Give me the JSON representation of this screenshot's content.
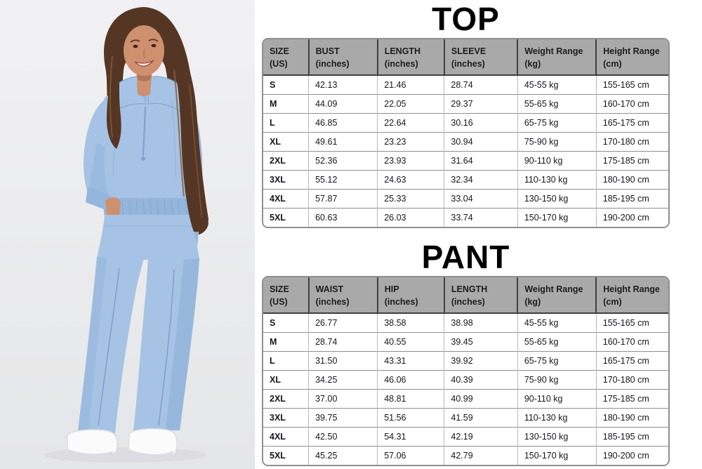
{
  "photo": {
    "description": "Model wearing a light blue half-zip sweatshirt and matching wide-leg sweatpants with white sneakers",
    "colors": {
      "background_top": "#f1f1f3",
      "background_bottom": "#e5e6e9",
      "garment": "#a6c3e5",
      "garment_mid": "#94b6dd",
      "garment_shadow": "#84a8d2",
      "garment_line": "#7e9fc9",
      "hair": "#553625",
      "hair_light": "#8a5f3c",
      "skin": "#cf906f",
      "skin_shadow": "#b3755a",
      "shoe": "#fbfbfc",
      "shoe_shadow": "#dcdce2",
      "floor_shadow": "#d9d9de"
    }
  },
  "theme": {
    "title_color": "#000000",
    "header_bg": "#a9a9a9",
    "header_text": "#1c1c1c",
    "body_text": "#15151e",
    "border_dark": "#404040",
    "border_mid": "#8f8f8f",
    "border_light": "#b9b9b9"
  },
  "sections": [
    {
      "title": "TOP",
      "table": {
        "headers": [
          [
            "SIZE",
            "(US)"
          ],
          [
            "BUST",
            "(inches)"
          ],
          [
            "LENGTH",
            "(inches)"
          ],
          [
            "SLEEVE",
            "(inches)"
          ],
          [
            "Weight Range",
            "(kg)"
          ],
          [
            "Height Range",
            "(cm)"
          ]
        ],
        "rows": [
          [
            "S",
            "42.13",
            "21.46",
            "28.74",
            "45-55 kg",
            "155-165 cm"
          ],
          [
            "M",
            "44.09",
            "22.05",
            "29.37",
            "55-65 kg",
            "160-170 cm"
          ],
          [
            "L",
            "46.85",
            "22.64",
            "30.16",
            "65-75 kg",
            "165-175 cm"
          ],
          [
            "XL",
            "49.61",
            "23.23",
            "30.94",
            "75-90 kg",
            "170-180 cm"
          ],
          [
            "2XL",
            "52.36",
            "23.93",
            "31.64",
            "90-110 kg",
            "175-185 cm"
          ],
          [
            "3XL",
            "55.12",
            "24.63",
            "32.34",
            "110-130 kg",
            "180-190 cm"
          ],
          [
            "4XL",
            "57.87",
            "25.33",
            "33.04",
            "130-150 kg",
            "185-195 cm"
          ],
          [
            "5XL",
            "60.63",
            "26.03",
            "33.74",
            "150-170 kg",
            "190-200 cm"
          ]
        ]
      }
    },
    {
      "title": "PANT",
      "table": {
        "headers": [
          [
            "SIZE",
            "(US)"
          ],
          [
            "WAIST",
            "(inches)"
          ],
          [
            "HIP",
            "(inches)"
          ],
          [
            "LENGTH",
            "(inches)"
          ],
          [
            "Weight Range",
            "(kg)"
          ],
          [
            "Height Range",
            "(cm)"
          ]
        ],
        "rows": [
          [
            "S",
            "26.77",
            "38.58",
            "38.98",
            "45-55 kg",
            "155-165 cm"
          ],
          [
            "M",
            "28.74",
            "40.55",
            "39.45",
            "55-65 kg",
            "160-170 cm"
          ],
          [
            "L",
            "31.50",
            "43.31",
            "39.92",
            "65-75 kg",
            "165-175 cm"
          ],
          [
            "XL",
            "34.25",
            "46.06",
            "40.39",
            "75-90 kg",
            "170-180 cm"
          ],
          [
            "2XL",
            "37.00",
            "48.81",
            "40.99",
            "90-110 kg",
            "175-185 cm"
          ],
          [
            "3XL",
            "39.75",
            "51.56",
            "41.59",
            "110-130 kg",
            "180-190 cm"
          ],
          [
            "4XL",
            "42.50",
            "54.31",
            "42.19",
            "130-150 kg",
            "185-195 cm"
          ],
          [
            "5XL",
            "45.25",
            "57.06",
            "42.79",
            "150-170 kg",
            "190-200 cm"
          ]
        ]
      }
    }
  ]
}
